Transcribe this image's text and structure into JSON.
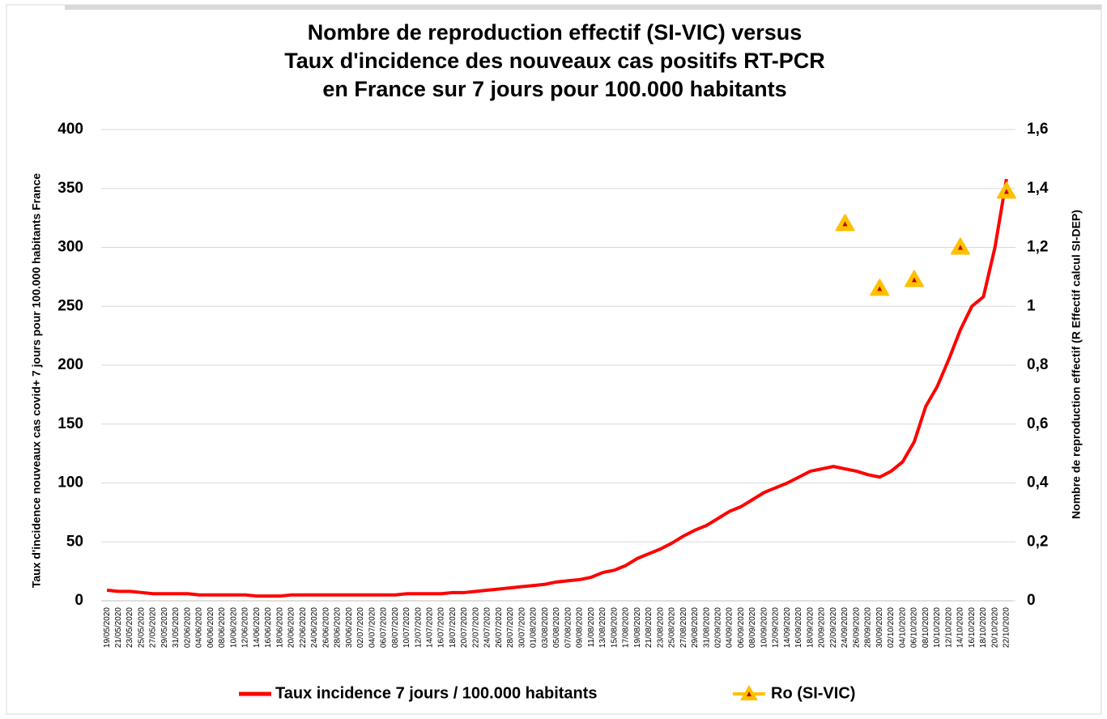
{
  "chart_data": {
    "type": "line",
    "title": [
      "Nombre de reproduction effectif (SI-VIC) versus",
      "Taux d'incidence des nouveaux cas positifs RT-PCR",
      "en France sur 7 jours pour 100.000 habitants"
    ],
    "y_label": "Taux d'incidence nouveaux cas covid+ 7 jours pour 100.000 habitants France",
    "y2_label": "Nombre de reproduction effectif (R Effectif calcul SI-DEP)",
    "categories": [
      "19/05/2020",
      "21/05/2020",
      "23/05/2020",
      "25/05/2020",
      "27/05/2020",
      "29/05/2020",
      "31/05/2020",
      "02/06/2020",
      "04/06/2020",
      "06/06/2020",
      "08/06/2020",
      "10/06/2020",
      "12/06/2020",
      "14/06/2020",
      "16/06/2020",
      "18/06/2020",
      "20/06/2020",
      "22/06/2020",
      "24/06/2020",
      "26/06/2020",
      "28/06/2020",
      "30/06/2020",
      "02/07/2020",
      "04/07/2020",
      "06/07/2020",
      "08/07/2020",
      "10/07/2020",
      "12/07/2020",
      "14/07/2020",
      "16/07/2020",
      "18/07/2020",
      "20/07/2020",
      "22/07/2020",
      "24/07/2020",
      "26/07/2020",
      "28/07/2020",
      "30/07/2020",
      "01/08/2020",
      "03/08/2020",
      "05/08/2020",
      "07/08/2020",
      "09/08/2020",
      "11/08/2020",
      "13/08/2020",
      "15/08/2020",
      "17/08/2020",
      "19/08/2020",
      "21/08/2020",
      "23/08/2020",
      "25/08/2020",
      "27/08/2020",
      "29/08/2020",
      "31/08/2020",
      "02/09/2020",
      "04/09/2020",
      "06/09/2020",
      "08/09/2020",
      "10/09/2020",
      "12/09/2020",
      "14/09/2020",
      "16/09/2020",
      "18/09/2020",
      "20/09/2020",
      "22/09/2020",
      "24/09/2020",
      "26/09/2020",
      "28/09/2020",
      "30/09/2020",
      "02/10/2020",
      "04/10/2020",
      "06/10/2020",
      "08/10/2020",
      "10/10/2020",
      "12/10/2020",
      "14/10/2020",
      "16/10/2020",
      "18/10/2020",
      "20/10/2020",
      "22/10/2020"
    ],
    "series": [
      {
        "name": "Taux incidence 7 jours / 100.000 habitants",
        "color": "#ff0000",
        "axis": "y",
        "values": [
          9,
          8,
          8,
          7,
          6,
          6,
          6,
          6,
          5,
          5,
          5,
          5,
          5,
          4,
          4,
          4,
          5,
          5,
          5,
          5,
          5,
          5,
          5,
          5,
          5,
          5,
          6,
          6,
          6,
          6,
          7,
          7,
          8,
          9,
          10,
          11,
          12,
          13,
          14,
          16,
          17,
          18,
          20,
          24,
          26,
          30,
          36,
          40,
          44,
          49,
          55,
          60,
          64,
          70,
          76,
          80,
          86,
          92,
          96,
          100,
          105,
          110,
          112,
          114,
          112,
          110,
          107,
          105,
          110,
          118,
          135,
          165,
          182,
          205,
          230,
          250,
          258,
          300,
          358
        ]
      },
      {
        "name": "Ro (SI-VIC)",
        "color": "#ffc000",
        "axis": "y2",
        "values": [
          null,
          null,
          null,
          null,
          null,
          null,
          null,
          null,
          null,
          null,
          null,
          null,
          null,
          null,
          null,
          null,
          null,
          null,
          null,
          null,
          null,
          null,
          null,
          null,
          null,
          null,
          null,
          null,
          null,
          null,
          null,
          null,
          null,
          null,
          null,
          null,
          null,
          null,
          null,
          null,
          null,
          null,
          null,
          null,
          null,
          null,
          null,
          null,
          null,
          null,
          null,
          null,
          null,
          null,
          null,
          null,
          null,
          null,
          null,
          null,
          null,
          null,
          null,
          null,
          1.28,
          null,
          null,
          1.06,
          null,
          null,
          1.09,
          null,
          null,
          null,
          1.2,
          null,
          null,
          null,
          1.39
        ]
      }
    ],
    "ylim": [
      0,
      400
    ],
    "yticks": [
      0,
      50,
      100,
      150,
      200,
      250,
      300,
      350,
      400
    ],
    "y2lim": [
      0,
      1.6
    ],
    "y2ticks": [
      0,
      {
        "value": 0.2,
        "label": "0,2"
      },
      {
        "value": 0.4,
        "label": "0,4"
      },
      {
        "value": 0.6,
        "label": "0,6"
      },
      {
        "value": 0.8,
        "label": "0,8"
      },
      1,
      {
        "value": 1.2,
        "label": "1,2"
      },
      {
        "value": 1.4,
        "label": "1,4"
      },
      {
        "value": 1.6,
        "label": "1,6"
      }
    ],
    "grid": true,
    "legend": "bottom"
  }
}
